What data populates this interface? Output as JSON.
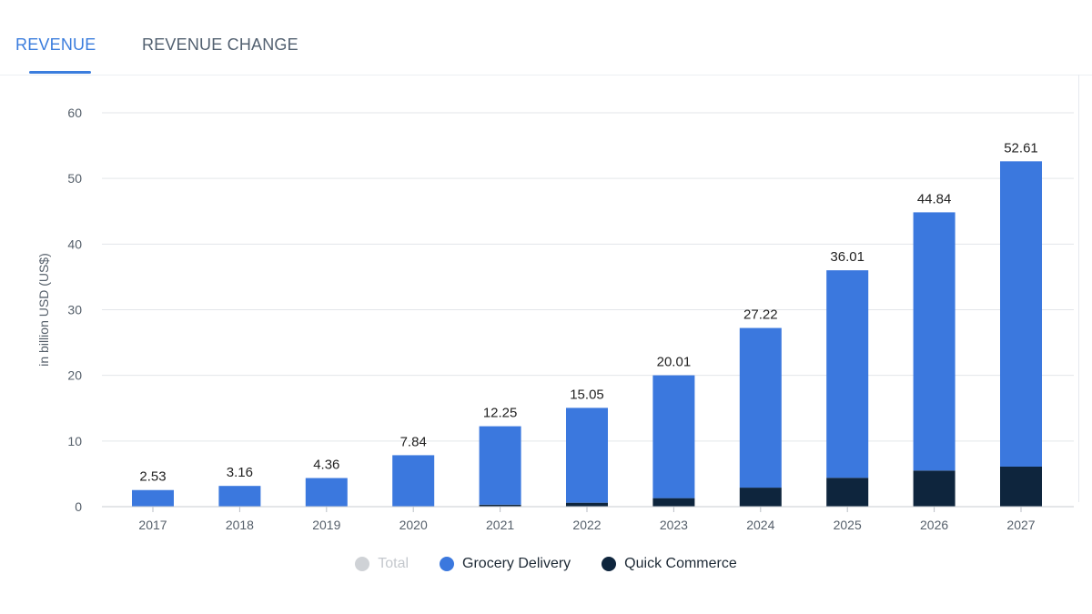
{
  "tabs": [
    {
      "label": "REVENUE",
      "active": true
    },
    {
      "label": "REVENUE CHANGE",
      "active": false
    }
  ],
  "colors": {
    "grocery": "#3b78de",
    "quick": "#0e253d",
    "total": "#cfd2d6",
    "grid": "#e3e6ea",
    "axis_text": "#555f6a",
    "label_text": "#222222"
  },
  "chart_data": {
    "type": "bar",
    "stacked": true,
    "ylabel": "in billion USD (US$)",
    "ylim": [
      0,
      60
    ],
    "yticks": [
      0,
      10,
      20,
      30,
      40,
      50,
      60
    ],
    "categories": [
      "2017",
      "2018",
      "2019",
      "2020",
      "2021",
      "2022",
      "2023",
      "2024",
      "2025",
      "2026",
      "2027"
    ],
    "series": [
      {
        "name": "Quick Commerce",
        "values": [
          0,
          0,
          0,
          0.02,
          0.3,
          0.6,
          1.3,
          2.9,
          4.4,
          5.5,
          6.1
        ]
      },
      {
        "name": "Grocery Delivery",
        "values": [
          2.53,
          3.16,
          4.36,
          7.82,
          11.95,
          14.45,
          18.71,
          24.32,
          31.61,
          39.34,
          46.51
        ]
      }
    ],
    "totals": [
      "2.53",
      "3.16",
      "4.36",
      "7.84",
      "12.25",
      "15.05",
      "20.01",
      "27.22",
      "36.01",
      "44.84",
      "52.61"
    ],
    "legend": [
      {
        "name": "Total",
        "muted": true
      },
      {
        "name": "Grocery Delivery",
        "muted": false
      },
      {
        "name": "Quick Commerce",
        "muted": false
      }
    ],
    "grid": true,
    "legend_position": "bottom"
  }
}
